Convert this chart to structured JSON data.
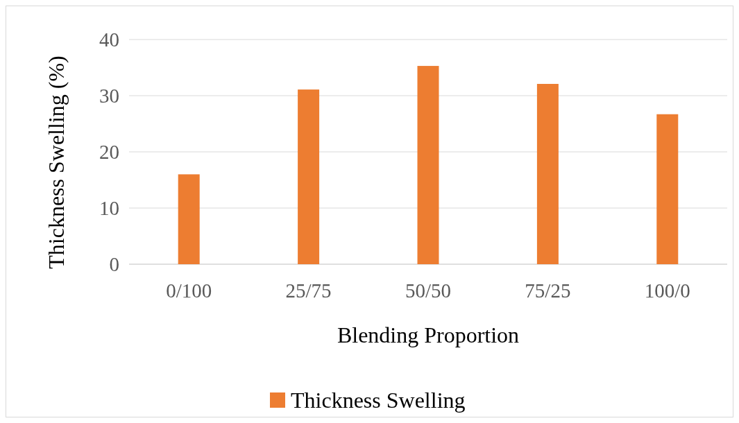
{
  "chart_data": {
    "type": "bar",
    "xlabel": "Blending Proportion",
    "ylabel": "Thickness Swelling (%)",
    "categories": [
      "0/100",
      "25/75",
      "50/50",
      "75/25",
      "100/0"
    ],
    "series": [
      {
        "name": "Thickness Swelling",
        "color": "#ed7d31",
        "values": [
          16.0,
          31.1,
          35.3,
          32.1,
          26.7
        ]
      }
    ],
    "ylim": [
      0,
      40
    ],
    "yticks": [
      0,
      10,
      20,
      30,
      40
    ],
    "grid": "y",
    "legend": "bottom"
  }
}
